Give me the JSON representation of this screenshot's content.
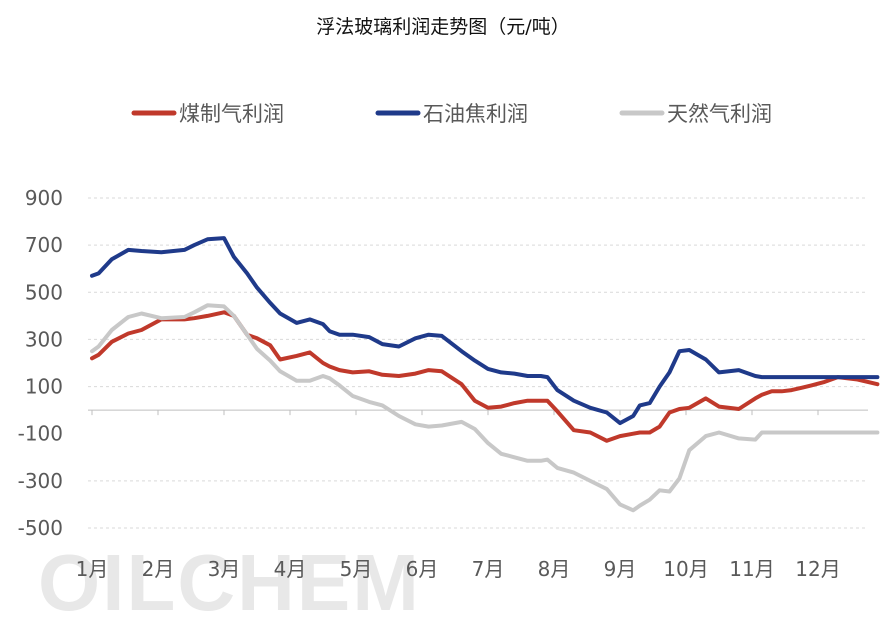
{
  "chart_data": {
    "type": "line",
    "title": "浮法玻璃利润走势图（元/吨）",
    "watermark": "OILCHEM",
    "xlabel": "",
    "ylabel": "",
    "ylim": [
      -500,
      900
    ],
    "yticks": [
      900,
      700,
      500,
      300,
      100,
      -100,
      -300,
      -500
    ],
    "categories": [
      "1月",
      "2月",
      "3月",
      "4月",
      "5月",
      "6月",
      "7月",
      "8月",
      "9月",
      "10月",
      "11月",
      "12月"
    ],
    "x_range": [
      0,
      11.9
    ],
    "grid": true,
    "legend_position": "top",
    "series": [
      {
        "name": "煤制气利润",
        "color": "#c0392b",
        "x": [
          0,
          0.1,
          0.3,
          0.55,
          0.75,
          1.05,
          1.4,
          1.55,
          1.75,
          2.0,
          2.15,
          2.35,
          2.5,
          2.7,
          2.85,
          3.1,
          3.3,
          3.5,
          3.6,
          3.75,
          3.95,
          4.2,
          4.4,
          4.65,
          4.9,
          5.1,
          5.3,
          5.6,
          5.8,
          6.0,
          6.2,
          6.4,
          6.6,
          6.8,
          6.9,
          7.05,
          7.3,
          7.55,
          7.8,
          8.0,
          8.2,
          8.3,
          8.45,
          8.6,
          8.75,
          8.9,
          9.05,
          9.3,
          9.5,
          9.8,
          10.05,
          10.15,
          10.3,
          10.45,
          10.6,
          10.75,
          10.9,
          11.1,
          11.3,
          11.6,
          11.9
        ],
        "values": [
          220,
          235,
          290,
          325,
          340,
          385,
          385,
          390,
          400,
          415,
          400,
          320,
          305,
          275,
          215,
          230,
          245,
          200,
          185,
          170,
          160,
          165,
          150,
          145,
          155,
          170,
          165,
          110,
          40,
          10,
          15,
          30,
          40,
          40,
          40,
          -5,
          -85,
          -95,
          -130,
          -110,
          -100,
          -95,
          -95,
          -70,
          -10,
          5,
          10,
          50,
          15,
          5,
          50,
          65,
          80,
          80,
          85,
          95,
          105,
          120,
          140,
          130,
          110
        ]
      },
      {
        "name": "石油焦利润",
        "color": "#1f3a8a",
        "x": [
          0,
          0.1,
          0.3,
          0.55,
          0.75,
          1.05,
          1.4,
          1.55,
          1.75,
          2.0,
          2.15,
          2.35,
          2.5,
          2.7,
          2.85,
          3.1,
          3.3,
          3.5,
          3.6,
          3.75,
          3.95,
          4.2,
          4.4,
          4.65,
          4.9,
          5.1,
          5.3,
          5.6,
          5.8,
          6.0,
          6.2,
          6.4,
          6.6,
          6.8,
          6.9,
          7.05,
          7.3,
          7.55,
          7.8,
          8.0,
          8.2,
          8.3,
          8.45,
          8.6,
          8.75,
          8.9,
          9.05,
          9.3,
          9.5,
          9.8,
          10.05,
          10.15,
          10.3,
          10.45,
          10.6,
          10.75,
          10.9,
          11.1,
          11.3,
          11.6,
          11.9
        ],
        "values": [
          570,
          580,
          640,
          680,
          675,
          670,
          680,
          700,
          725,
          730,
          650,
          580,
          520,
          455,
          410,
          370,
          385,
          365,
          335,
          320,
          320,
          310,
          280,
          270,
          305,
          320,
          315,
          250,
          210,
          175,
          160,
          155,
          145,
          145,
          140,
          85,
          40,
          10,
          -10,
          -55,
          -25,
          20,
          30,
          100,
          160,
          250,
          255,
          215,
          160,
          170,
          145,
          140,
          140,
          140,
          140,
          140,
          140,
          140,
          140,
          140,
          140
        ]
      },
      {
        "name": "天然气利润",
        "color": "#c8c8c8",
        "x": [
          0,
          0.1,
          0.3,
          0.55,
          0.75,
          1.05,
          1.4,
          1.55,
          1.75,
          2.0,
          2.15,
          2.35,
          2.5,
          2.7,
          2.85,
          3.1,
          3.3,
          3.5,
          3.6,
          3.75,
          3.95,
          4.2,
          4.4,
          4.65,
          4.9,
          5.1,
          5.3,
          5.6,
          5.8,
          6.0,
          6.2,
          6.4,
          6.6,
          6.8,
          6.9,
          7.05,
          7.3,
          7.55,
          7.8,
          8.0,
          8.2,
          8.3,
          8.45,
          8.6,
          8.75,
          8.9,
          9.05,
          9.3,
          9.5,
          9.8,
          10.05,
          10.15,
          10.3,
          10.45,
          10.6,
          10.75,
          10.9,
          11.1,
          11.3,
          11.6,
          11.9
        ],
        "values": [
          250,
          270,
          340,
          395,
          410,
          390,
          395,
          415,
          445,
          440,
          400,
          320,
          260,
          210,
          165,
          125,
          125,
          145,
          135,
          105,
          60,
          35,
          20,
          -25,
          -60,
          -70,
          -65,
          -50,
          -80,
          -140,
          -185,
          -200,
          -215,
          -215,
          -210,
          -245,
          -265,
          -300,
          -335,
          -400,
          -425,
          -405,
          -380,
          -340,
          -345,
          -290,
          -170,
          -110,
          -95,
          -120,
          -125,
          -95,
          -95,
          -95,
          -95,
          -95,
          -95,
          -95,
          -95,
          -95,
          -95
        ]
      }
    ]
  }
}
